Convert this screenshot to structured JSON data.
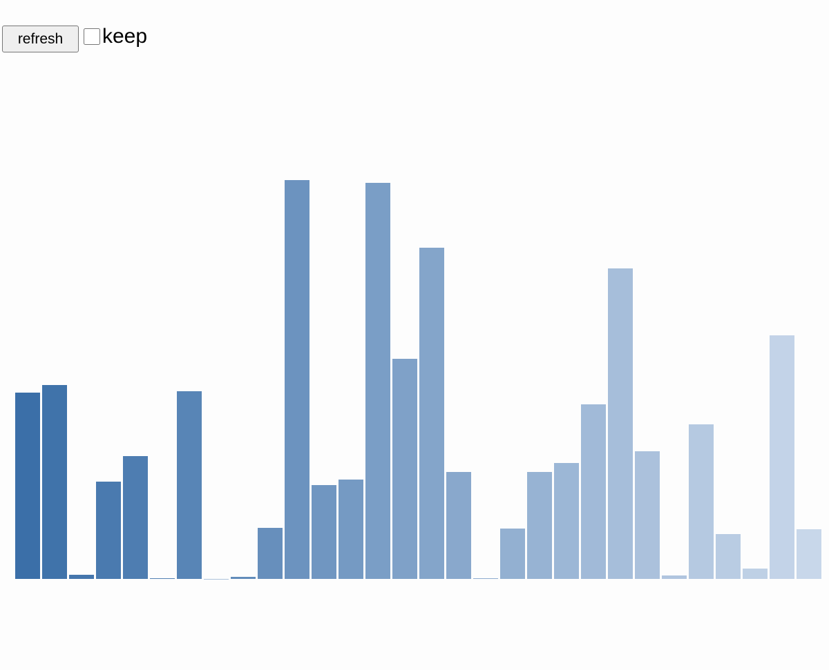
{
  "controls": {
    "button": "refresh",
    "checkbox_label": "keep",
    "checked": false
  },
  "chart_data": {
    "type": "bar",
    "values": [
      270,
      281,
      6,
      141,
      178,
      1,
      272,
      0,
      3,
      74,
      578,
      136,
      144,
      574,
      319,
      480,
      155,
      1,
      73,
      155,
      168,
      253,
      450,
      185,
      5,
      224,
      65,
      15,
      353,
      72
    ],
    "ylim": [
      0,
      600
    ],
    "color_range": [
      "#3b6fa8",
      "#c8d7ea"
    ]
  }
}
